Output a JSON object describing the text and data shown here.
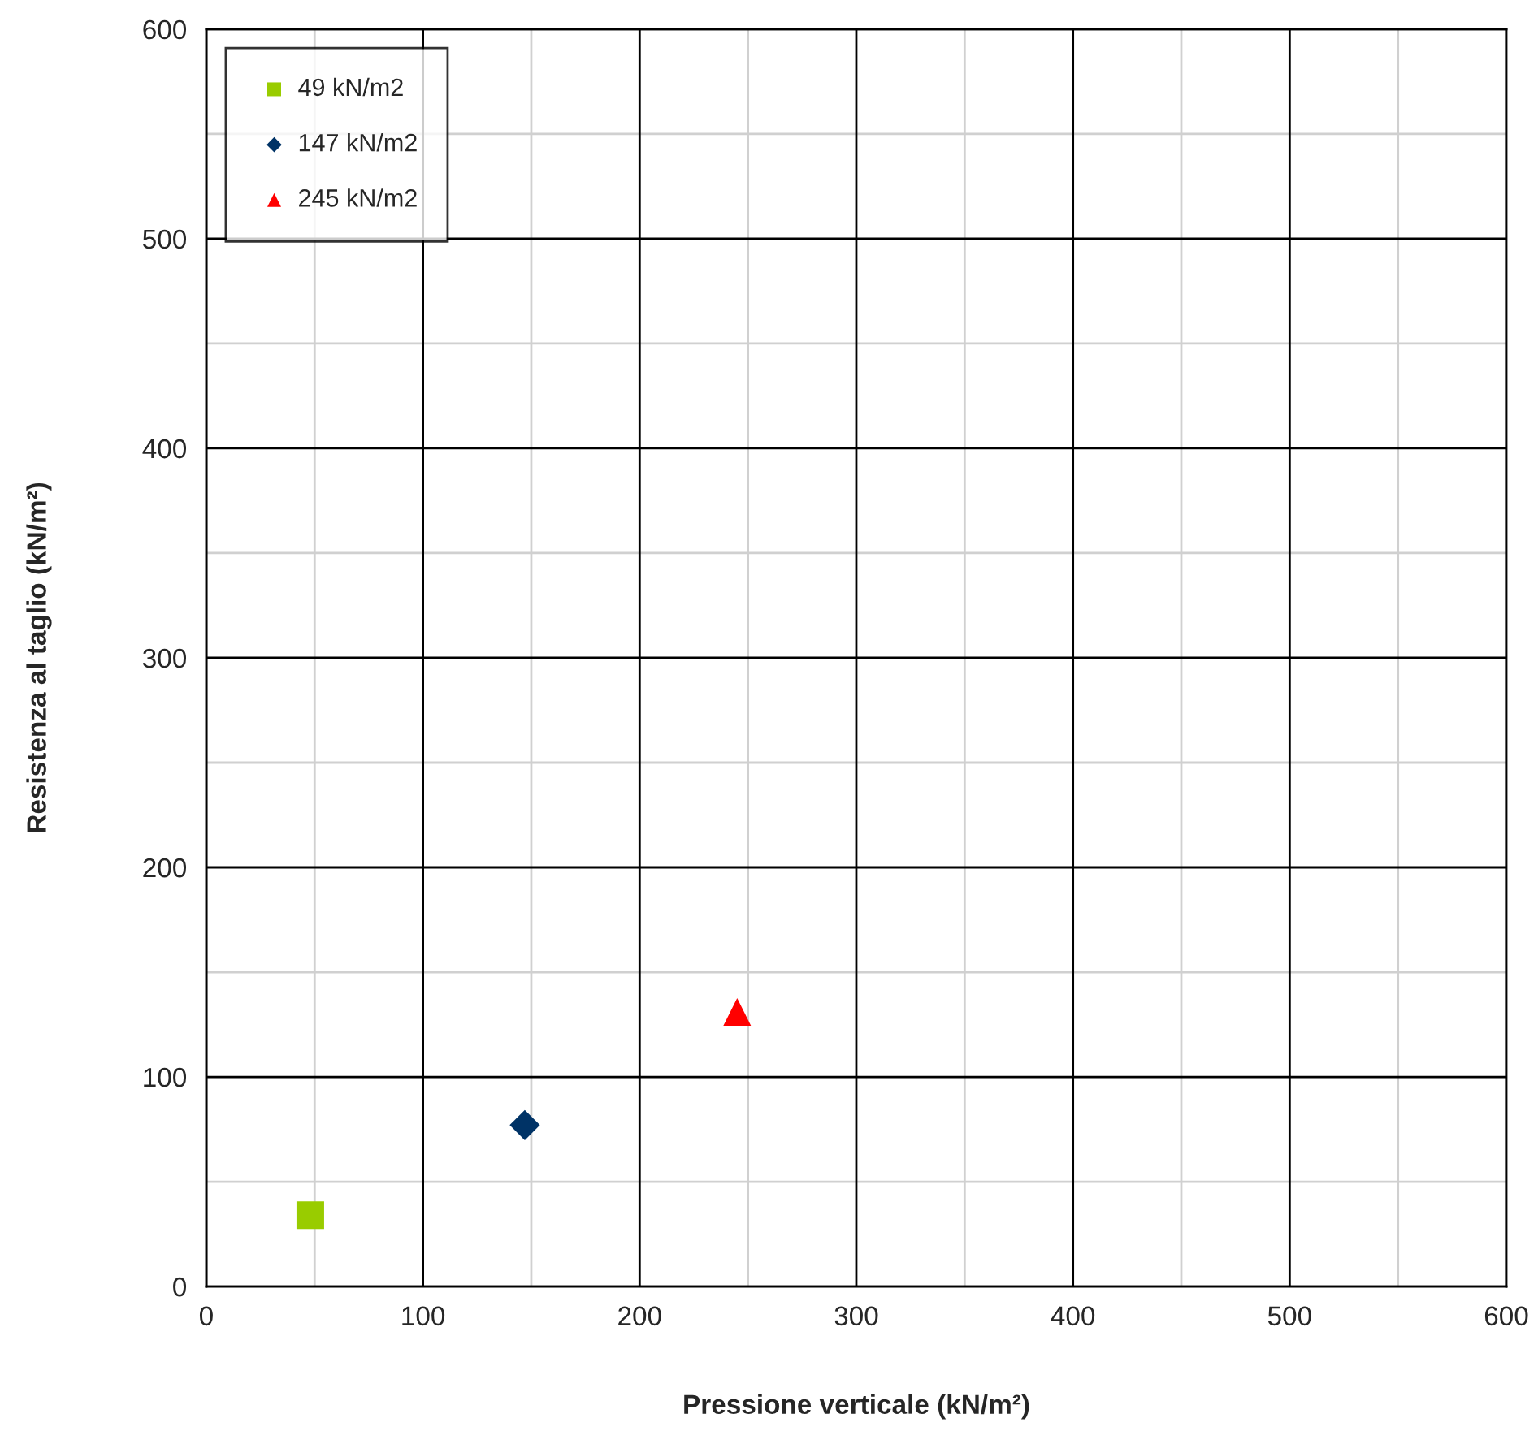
{
  "chart_data": {
    "type": "scatter",
    "xlabel": "Pressione verticale (kN/m²)",
    "ylabel": "Resistenza al taglio (kN/m²)",
    "series": [
      {
        "name": "49 kN/m2",
        "color": "#99cc00",
        "marker": "square",
        "x": [
          48
        ],
        "values": [
          34
        ]
      },
      {
        "name": "147 kN/m2",
        "color": "#003366",
        "marker": "diamond",
        "x": [
          147
        ],
        "values": [
          77
        ]
      },
      {
        "name": "245 kN/m2",
        "color": "#ff0000",
        "marker": "triangle",
        "x": [
          245
        ],
        "values": [
          131
        ]
      }
    ],
    "xlim": [
      0,
      600
    ],
    "ylim": [
      0,
      600
    ],
    "xticks": [
      0,
      {
        "value": 50,
        "label": null
      },
      100,
      {
        "value": 150,
        "label": null
      },
      200,
      {
        "value": 250,
        "label": null
      },
      300,
      {
        "value": 350,
        "label": null
      },
      400,
      {
        "value": 450,
        "label": null
      },
      500,
      {
        "value": 550,
        "label": null
      },
      600
    ],
    "yticks": [
      0,
      {
        "value": 50,
        "label": null
      },
      100,
      {
        "value": 150,
        "label": null
      },
      200,
      {
        "value": 250,
        "label": null
      },
      300,
      {
        "value": 350,
        "label": null
      },
      400,
      {
        "value": 450,
        "label": null
      },
      500,
      {
        "value": 550,
        "label": null
      },
      600
    ],
    "grid": true,
    "legend": "top left"
  }
}
